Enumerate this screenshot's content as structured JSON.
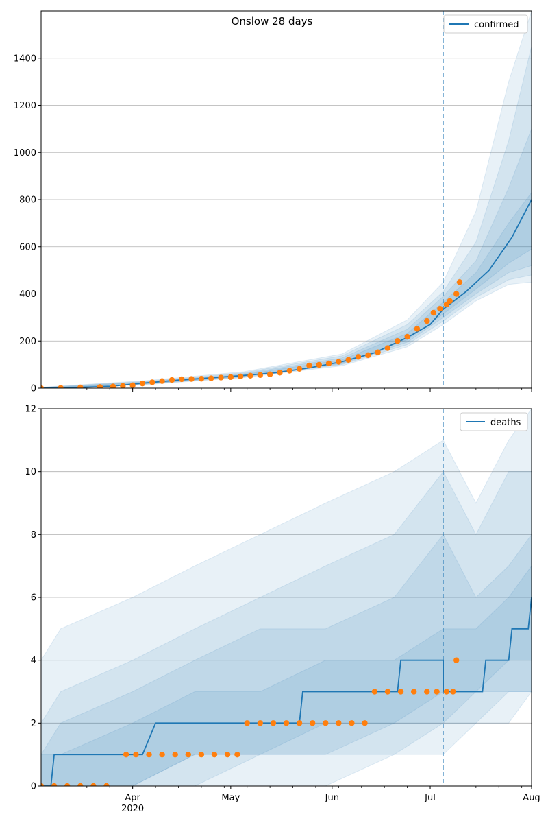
{
  "title": "Onslow 28 days",
  "colors": {
    "model": "#1f77b4",
    "observed": "#ff7f0e",
    "band": "#1f77b4",
    "forecast_line": "#1f77b4",
    "grid": "#b0b0b0"
  },
  "x_axis": {
    "start": "2020-03-04",
    "end": "2020-08-01",
    "ticks": [
      {
        "date": "2020-04-01",
        "label": "Apr",
        "sublabel": "2020"
      },
      {
        "date": "2020-05-01",
        "label": "May",
        "sublabel": ""
      },
      {
        "date": "2020-06-01",
        "label": "Jun",
        "sublabel": ""
      },
      {
        "date": "2020-07-01",
        "label": "Jul",
        "sublabel": ""
      },
      {
        "date": "2020-08-01",
        "label": "Aug",
        "sublabel": ""
      }
    ],
    "forecast_date": "2020-07-05"
  },
  "chart_data": [
    {
      "type": "line",
      "series_name": "confirmed",
      "legend": "confirmed",
      "legend_position": "top-right",
      "grid": true,
      "ylim": [
        0,
        1600
      ],
      "yticks": [
        0,
        200,
        400,
        600,
        800,
        1000,
        1200,
        1400
      ],
      "model": {
        "x": [
          "2020-03-04",
          "2020-03-15",
          "2020-03-25",
          "2020-04-05",
          "2020-04-15",
          "2020-04-25",
          "2020-05-05",
          "2020-05-15",
          "2020-05-25",
          "2020-06-04",
          "2020-06-14",
          "2020-06-24",
          "2020-07-01",
          "2020-07-05",
          "2020-07-12",
          "2020-07-19",
          "2020-07-26",
          "2020-08-01"
        ],
        "y": [
          0,
          3,
          8,
          22,
          34,
          44,
          54,
          66,
          86,
          112,
          150,
          215,
          270,
          335,
          410,
          500,
          640,
          800
        ]
      },
      "bands": [
        {
          "x": [
            "2020-03-04",
            "2020-04-05",
            "2020-05-05",
            "2020-06-04",
            "2020-06-24",
            "2020-07-05",
            "2020-07-15",
            "2020-07-25",
            "2020-08-01"
          ],
          "lo": [
            0,
            15,
            45,
            95,
            175,
            270,
            370,
            440,
            450
          ],
          "hi": [
            4,
            32,
            70,
            145,
            290,
            450,
            750,
            1300,
            1600
          ]
        },
        {
          "x": [
            "2020-03-04",
            "2020-04-05",
            "2020-05-05",
            "2020-06-04",
            "2020-06-24",
            "2020-07-05",
            "2020-07-15",
            "2020-07-25",
            "2020-08-01"
          ],
          "lo": [
            0,
            17,
            47,
            100,
            185,
            285,
            385,
            460,
            480
          ],
          "hi": [
            3,
            29,
            66,
            137,
            270,
            410,
            620,
            1050,
            1450
          ]
        },
        {
          "x": [
            "2020-03-04",
            "2020-04-05",
            "2020-05-05",
            "2020-06-04",
            "2020-06-24",
            "2020-07-05",
            "2020-07-15",
            "2020-07-25",
            "2020-08-01"
          ],
          "lo": [
            0,
            18,
            49,
            103,
            195,
            300,
            400,
            490,
            520
          ],
          "hi": [
            2,
            27,
            62,
            128,
            250,
            390,
            540,
            850,
            1100
          ]
        },
        {
          "x": [
            "2020-03-04",
            "2020-04-05",
            "2020-05-05",
            "2020-06-04",
            "2020-06-24",
            "2020-07-05",
            "2020-07-15",
            "2020-07-25",
            "2020-08-01"
          ],
          "lo": [
            0,
            19,
            51,
            106,
            205,
            315,
            420,
            530,
            590
          ],
          "hi": [
            1,
            25,
            58,
            120,
            232,
            365,
            490,
            700,
            830
          ]
        }
      ],
      "observed": {
        "x": [
          "2020-03-04",
          "2020-03-10",
          "2020-03-16",
          "2020-03-22",
          "2020-03-26",
          "2020-03-29",
          "2020-04-01",
          "2020-04-04",
          "2020-04-07",
          "2020-04-10",
          "2020-04-13",
          "2020-04-16",
          "2020-04-19",
          "2020-04-22",
          "2020-04-25",
          "2020-04-28",
          "2020-05-01",
          "2020-05-04",
          "2020-05-07",
          "2020-05-10",
          "2020-05-13",
          "2020-05-16",
          "2020-05-19",
          "2020-05-22",
          "2020-05-25",
          "2020-05-28",
          "2020-05-31",
          "2020-06-03",
          "2020-06-06",
          "2020-06-09",
          "2020-06-12",
          "2020-06-15",
          "2020-06-18",
          "2020-06-21",
          "2020-06-24",
          "2020-06-27",
          "2020-06-30",
          "2020-07-02",
          "2020-07-04",
          "2020-07-06",
          "2020-07-07",
          "2020-07-09",
          "2020-07-10"
        ],
        "y": [
          0,
          1,
          3,
          5,
          7,
          9,
          12,
          20,
          25,
          30,
          35,
          38,
          39,
          40,
          42,
          45,
          47,
          50,
          53,
          56,
          59,
          66,
          74,
          82,
          96,
          99,
          105,
          112,
          120,
          133,
          140,
          152,
          170,
          200,
          218,
          252,
          285,
          320,
          337,
          355,
          370,
          400,
          450
        ]
      }
    },
    {
      "type": "line",
      "series_name": "deaths",
      "legend": "deaths",
      "legend_position": "top-right",
      "grid": true,
      "ylim": [
        0,
        12
      ],
      "yticks": [
        0,
        2,
        4,
        6,
        8,
        10,
        12
      ],
      "model": {
        "x": [
          "2020-03-04",
          "2020-03-07",
          "2020-03-08",
          "2020-04-04",
          "2020-04-08",
          "2020-04-09",
          "2020-05-22",
          "2020-05-23",
          "2020-06-21",
          "2020-06-22",
          "2020-07-05",
          "2020-07-05",
          "2020-07-17",
          "2020-07-18",
          "2020-07-25",
          "2020-07-26",
          "2020-07-31",
          "2020-08-01"
        ],
        "y": [
          0,
          0,
          1,
          1,
          2,
          2,
          2,
          3,
          3,
          4,
          4,
          3,
          3,
          4,
          4,
          5,
          5,
          6
        ]
      },
      "bands": [
        {
          "x": [
            "2020-03-04",
            "2020-03-10",
            "2020-04-01",
            "2020-04-20",
            "2020-05-10",
            "2020-05-30",
            "2020-06-20",
            "2020-07-05",
            "2020-07-15",
            "2020-07-25",
            "2020-08-01"
          ],
          "lo": [
            0,
            0,
            0,
            0,
            0,
            0,
            1,
            1,
            2,
            2,
            3
          ],
          "hi": [
            4,
            5,
            6,
            7,
            8,
            9,
            10,
            11,
            9,
            11,
            12
          ]
        },
        {
          "x": [
            "2020-03-04",
            "2020-03-10",
            "2020-04-01",
            "2020-04-20",
            "2020-05-10",
            "2020-05-30",
            "2020-06-20",
            "2020-07-05",
            "2020-07-15",
            "2020-07-25",
            "2020-08-01"
          ],
          "lo": [
            0,
            0,
            0,
            0,
            1,
            1,
            1,
            2,
            2,
            3,
            3
          ],
          "hi": [
            2,
            3,
            4,
            5,
            6,
            7,
            8,
            10,
            8,
            10,
            10
          ]
        },
        {
          "x": [
            "2020-03-04",
            "2020-03-10",
            "2020-04-01",
            "2020-04-20",
            "2020-05-10",
            "2020-05-30",
            "2020-06-20",
            "2020-07-05",
            "2020-07-15",
            "2020-07-25",
            "2020-08-01"
          ],
          "lo": [
            0,
            0,
            0,
            1,
            1,
            1,
            2,
            2,
            3,
            3,
            3
          ],
          "hi": [
            1,
            2,
            3,
            4,
            5,
            5,
            6,
            8,
            6,
            7,
            8
          ]
        },
        {
          "x": [
            "2020-03-04",
            "2020-03-10",
            "2020-04-01",
            "2020-04-20",
            "2020-05-10",
            "2020-05-30",
            "2020-06-20",
            "2020-07-05",
            "2020-07-15",
            "2020-07-25",
            "2020-08-01"
          ],
          "lo": [
            0,
            0,
            0,
            1,
            1,
            2,
            2,
            3,
            3,
            4,
            4
          ],
          "hi": [
            1,
            1,
            2,
            3,
            3,
            4,
            4,
            5,
            5,
            6,
            7
          ]
        }
      ],
      "observed": {
        "x": [
          "2020-03-04",
          "2020-03-08",
          "2020-03-12",
          "2020-03-16",
          "2020-03-20",
          "2020-03-24",
          "2020-03-30",
          "2020-04-02",
          "2020-04-06",
          "2020-04-10",
          "2020-04-14",
          "2020-04-18",
          "2020-04-22",
          "2020-04-26",
          "2020-04-30",
          "2020-05-03",
          "2020-05-06",
          "2020-05-10",
          "2020-05-14",
          "2020-05-18",
          "2020-05-22",
          "2020-05-26",
          "2020-05-30",
          "2020-06-03",
          "2020-06-07",
          "2020-06-11",
          "2020-06-14",
          "2020-06-18",
          "2020-06-22",
          "2020-06-26",
          "2020-06-30",
          "2020-07-03",
          "2020-07-06",
          "2020-07-08",
          "2020-07-09"
        ],
        "y": [
          0,
          0,
          0,
          0,
          0,
          0,
          1,
          1,
          1,
          1,
          1,
          1,
          1,
          1,
          1,
          1,
          2,
          2,
          2,
          2,
          2,
          2,
          2,
          2,
          2,
          2,
          3,
          3,
          3,
          3,
          3,
          3,
          3,
          3,
          4
        ]
      }
    }
  ]
}
